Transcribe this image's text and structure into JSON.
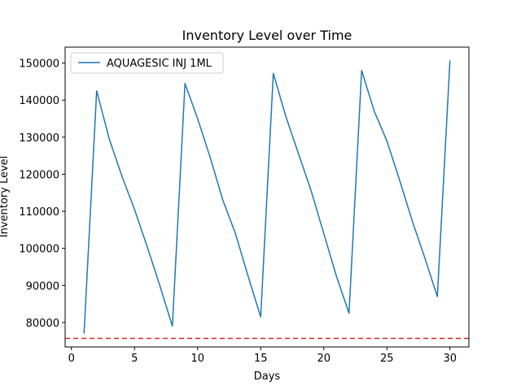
{
  "chart_data": {
    "type": "line",
    "title": "Inventory Level over Time",
    "xlabel": "Days",
    "ylabel": "Inventory Level",
    "xlim": [
      -0.5,
      31.5
    ],
    "ylim": [
      73400,
      154300
    ],
    "xticks": [
      0,
      5,
      10,
      15,
      20,
      25,
      30
    ],
    "yticks": [
      80000,
      90000,
      100000,
      110000,
      120000,
      130000,
      140000,
      150000
    ],
    "grid": false,
    "legend_position": "top-left",
    "series": [
      {
        "name": "AQUAGESIC INJ 1ML",
        "color": "#1f77b4",
        "x": [
          1,
          2,
          3,
          4,
          5,
          6,
          7,
          8,
          9,
          10,
          11,
          12,
          13,
          14,
          15,
          16,
          17,
          18,
          19,
          20,
          21,
          22,
          23,
          24,
          25,
          26,
          27,
          28,
          29,
          30
        ],
        "y": [
          77000,
          142500,
          129500,
          119500,
          110500,
          100500,
          90000,
          79000,
          144500,
          135000,
          124500,
          113000,
          104000,
          92500,
          81500,
          147200,
          135500,
          125500,
          115500,
          104000,
          92500,
          82500,
          148000,
          137000,
          129000,
          118500,
          107500,
          97500,
          87000,
          150700
        ]
      }
    ],
    "reference_line": {
      "y": 75700,
      "color": "#d62728",
      "style": "dashed"
    }
  }
}
